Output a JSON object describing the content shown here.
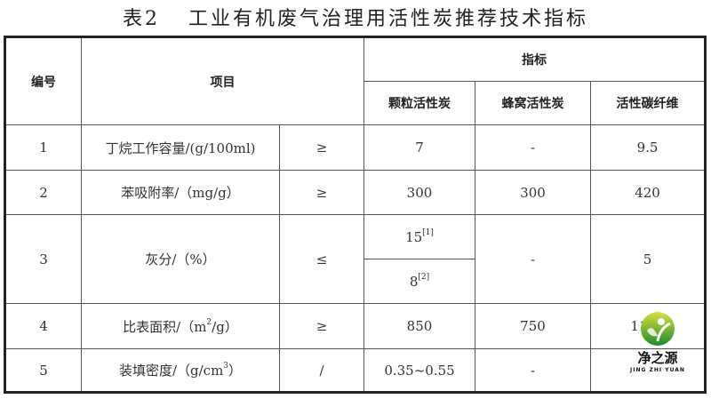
{
  "title": {
    "number": "表2",
    "text": "工业有机废气治理用活性炭推荐技术指标"
  },
  "headers": {
    "no": "编号",
    "item": "项目",
    "index": "指标",
    "granular": "颗粒活性炭",
    "honeycomb": "蜂窝活性炭",
    "fiber": "活性碳纤维"
  },
  "rows": [
    {
      "no": "1",
      "item": "丁烷工作容量/(g/100ml)",
      "op": "≥",
      "granular": "7",
      "honeycomb": "-",
      "fiber": "9.5"
    },
    {
      "no": "2",
      "item": "苯吸附率/（mg/g）",
      "op": "≥",
      "granular": "300",
      "honeycomb": "300",
      "fiber": "420"
    },
    {
      "no": "3",
      "item": "灰分/（%）",
      "op": "≤",
      "granular_a": "15",
      "granular_a_note": "[1]",
      "granular_b": "8",
      "granular_b_note": "[2]",
      "honeycomb": "-",
      "fiber": "5"
    },
    {
      "no": "4",
      "item_pre": "比表面积/（m",
      "item_sup": "2",
      "item_post": "/g）",
      "op": "≥",
      "granular": "850",
      "honeycomb": "750",
      "fiber": "1100"
    },
    {
      "no": "5",
      "item_pre": "装填密度/（g/cm",
      "item_sup": "3",
      "item_post": "）",
      "op": "/",
      "granular": "0.35~0.55",
      "honeycomb": "-",
      "fiber": ""
    }
  ],
  "watermark": {
    "cn": "净之源",
    "en": "JING ZHI YUAN"
  }
}
